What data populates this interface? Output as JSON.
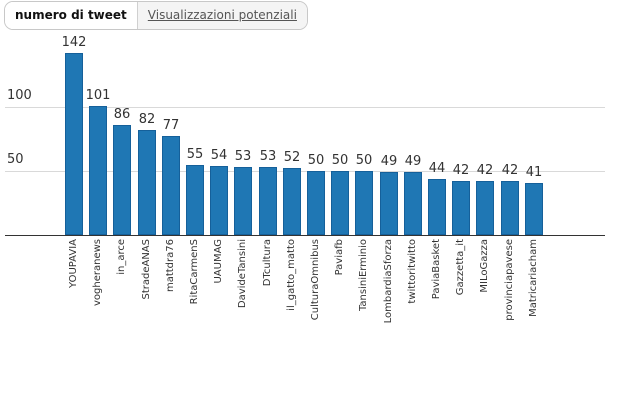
{
  "tabs": {
    "active_label": "numero di tweet",
    "inactive_label": "Visualizzazioni potenziali"
  },
  "colors": {
    "bar": "#1f77b4",
    "grid": "#d9d9d9",
    "axis": "#333333"
  },
  "chart_data": {
    "type": "bar",
    "title": "",
    "xlabel": "",
    "ylabel": "",
    "ylim": [
      0,
      145
    ],
    "yticks": [
      50,
      100
    ],
    "grid": true,
    "legend": null,
    "categories": [
      "YOUPAVIA",
      "vogheranews",
      "in_arce",
      "StradeANAS",
      "mattdra76",
      "RitaCarmenS",
      "UAUMAG",
      "DavideTansini",
      "DTcultura",
      "il_gatto_matto",
      "CulturaOmnibus",
      "Paviafb",
      "TansiniErminio",
      "LombardiaSforza",
      "twittoritwitto",
      "PaviaBasket",
      "Gazzetta_it",
      "MILoGazza",
      "provinciapavese",
      "Matricariacham"
    ],
    "values": [
      142,
      101,
      86,
      82,
      77,
      55,
      54,
      53,
      53,
      52,
      50,
      50,
      50,
      49,
      49,
      44,
      42,
      42,
      42,
      41
    ]
  }
}
